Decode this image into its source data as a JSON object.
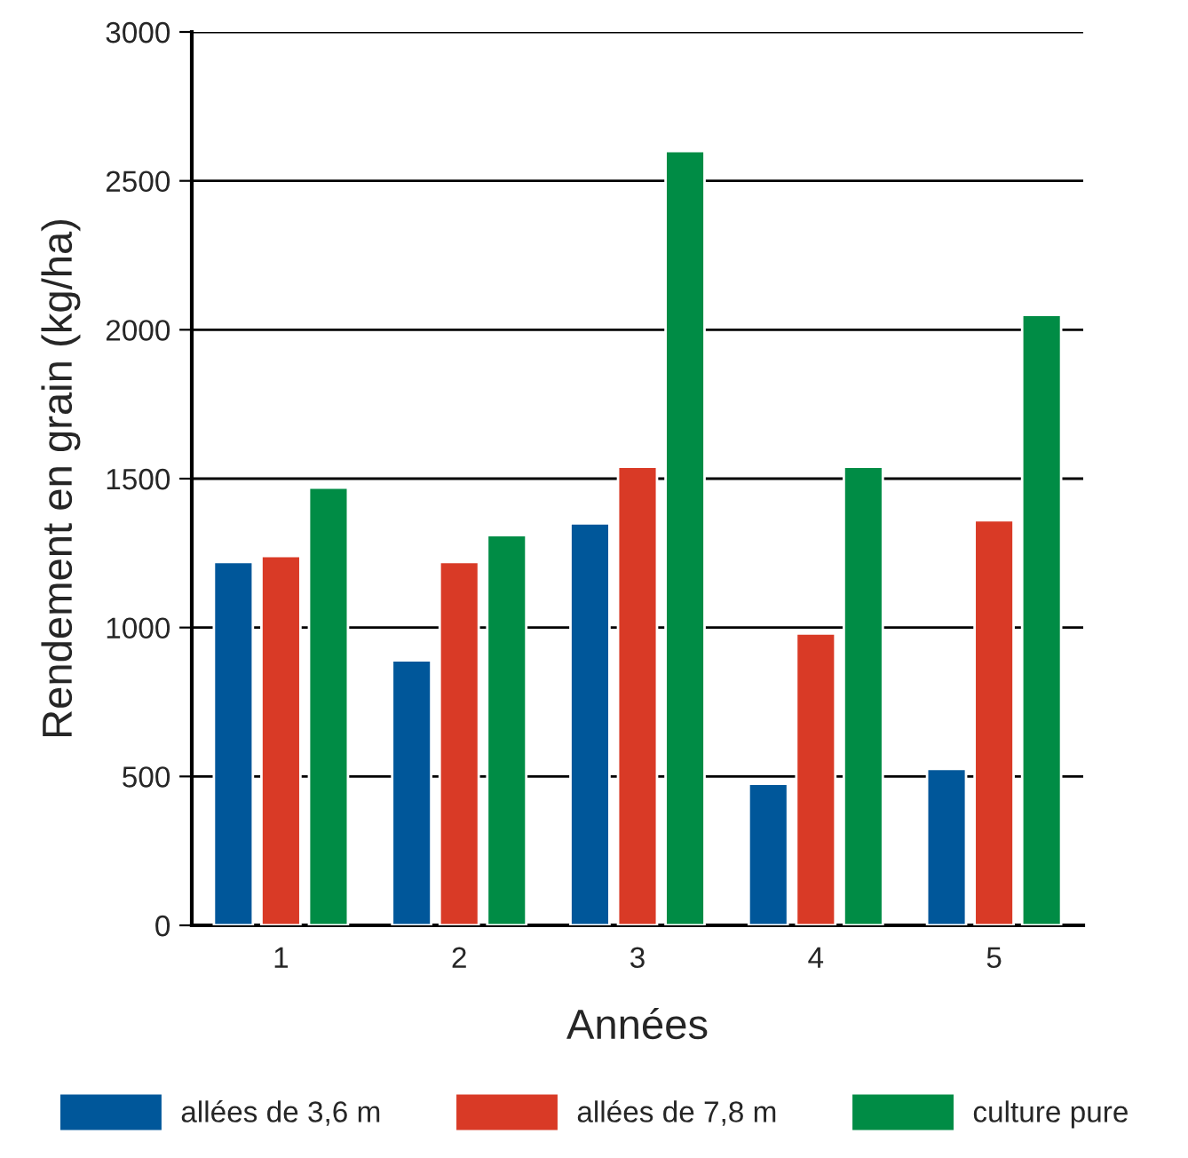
{
  "chart_data": {
    "type": "bar",
    "xlabel": "Années",
    "ylabel": "Rendement en grain (kg/ha)",
    "categories": [
      "1",
      "2",
      "3",
      "4",
      "5"
    ],
    "series": [
      {
        "name": "allées de 3,6 m",
        "color": "#00579a",
        "values": [
          1220,
          890,
          1350,
          475,
          525
        ]
      },
      {
        "name": "allées de 7,8 m",
        "color": "#d93a26",
        "values": [
          1240,
          1220,
          1540,
          980,
          1360
        ]
      },
      {
        "name": "culture pure",
        "color": "#008c45",
        "values": [
          1470,
          1310,
          2600,
          1540,
          2050
        ]
      }
    ],
    "ylim": [
      0,
      3000
    ],
    "yticks": [
      0,
      500,
      1000,
      1500,
      2000,
      2500,
      3000
    ],
    "grid": "y",
    "legend": "bottom"
  }
}
